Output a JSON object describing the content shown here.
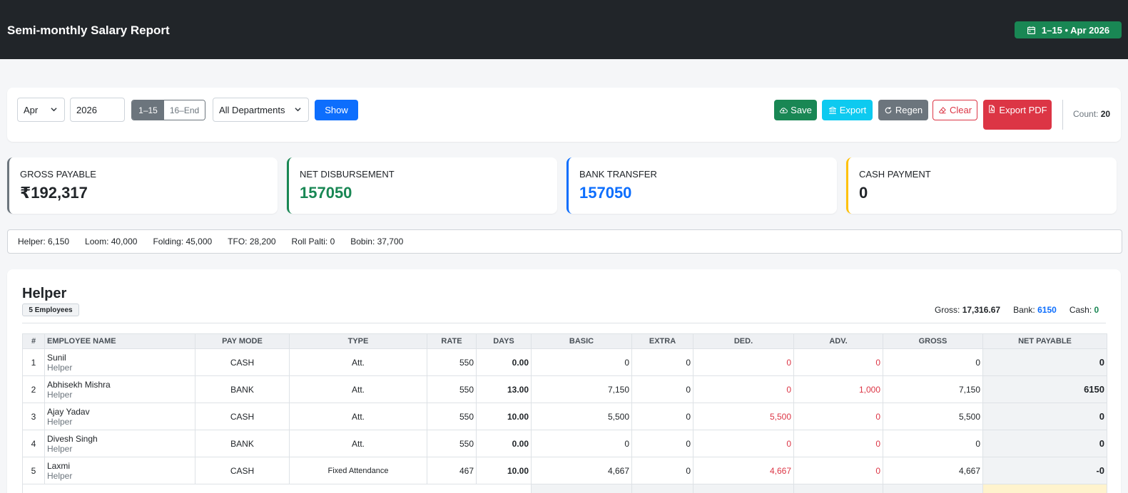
{
  "header": {
    "title": "Semi-monthly Salary Report",
    "period_badge": "1–15 • Apr 2026"
  },
  "filters": {
    "month": "Apr",
    "year": "2026",
    "half_first": "1–15",
    "half_second": "16–End",
    "department": "All Departments",
    "show_label": "Show"
  },
  "actions": {
    "save": "Save",
    "export": "Export",
    "regen": "Regen",
    "clear": "Clear",
    "export_pdf": "Export PDF",
    "count_label": "Count:",
    "count_value": "20"
  },
  "stats": [
    {
      "label": "GROSS PAYABLE",
      "value": "₹192,317",
      "color": "#212529",
      "border": "#6c757d"
    },
    {
      "label": "NET DISBURSEMENT",
      "value": "157050",
      "color": "#198754",
      "border": "#198754"
    },
    {
      "label": "BANK TRANSFER",
      "value": "157050",
      "color": "#0d6efd",
      "border": "#0d6efd"
    },
    {
      "label": "CASH PAYMENT",
      "value": "0",
      "color": "#212529",
      "border": "#ffc107"
    }
  ],
  "breakdown": [
    "Helper: 6,150",
    "Loom: 40,000",
    "Folding: 45,000",
    "TFO: 28,200",
    "Roll Palti: 0",
    "Bobin: 37,700"
  ],
  "section": {
    "title": "Helper",
    "badge": "5 Employees",
    "gross_label": "Gross:",
    "gross_value": "17,316.67",
    "bank_label": "Bank:",
    "bank_value": "6150",
    "cash_label": "Cash:",
    "cash_value": "0"
  },
  "table": {
    "headers": [
      "#",
      "EMPLOYEE NAME",
      "PAY MODE",
      "TYPE",
      "RATE",
      "DAYS",
      "BASIC",
      "EXTRA",
      "DED.",
      "ADV.",
      "GROSS",
      "NET PAYABLE"
    ],
    "rows": [
      {
        "num": "1",
        "name": "Sunil",
        "role": "Helper",
        "mode": "CASH",
        "type": "Att.",
        "rate": "550",
        "days": "0.00",
        "basic": "0",
        "extra": "0",
        "ded": "0",
        "adv": "0",
        "gross": "0",
        "net": "0"
      },
      {
        "num": "2",
        "name": "Abhisekh Mishra",
        "role": "Helper",
        "mode": "BANK",
        "type": "Att.",
        "rate": "550",
        "days": "13.00",
        "basic": "7,150",
        "extra": "0",
        "ded": "0",
        "adv": "1,000",
        "gross": "7,150",
        "net": "6150"
      },
      {
        "num": "3",
        "name": "Ajay Yadav",
        "role": "Helper",
        "mode": "CASH",
        "type": "Att.",
        "rate": "550",
        "days": "10.00",
        "basic": "5,500",
        "extra": "0",
        "ded": "5,500",
        "adv": "0",
        "gross": "5,500",
        "net": "0"
      },
      {
        "num": "4",
        "name": "Divesh Singh",
        "role": "Helper",
        "mode": "BANK",
        "type": "Att.",
        "rate": "550",
        "days": "0.00",
        "basic": "0",
        "extra": "0",
        "ded": "0",
        "adv": "0",
        "gross": "0",
        "net": "0"
      },
      {
        "num": "5",
        "name": "Laxmi",
        "role": "Helper",
        "mode": "CASH",
        "type": "Fixed Attendance",
        "rate": "467",
        "days": "10.00",
        "basic": "4,667",
        "extra": "0",
        "ded": "4,667",
        "adv": "0",
        "gross": "4,667",
        "net": "-0"
      }
    ]
  },
  "colors": {
    "header_bg": "#212529",
    "success": "#198754",
    "primary": "#0d6efd",
    "info": "#0dcaf0",
    "secondary": "#6c757d",
    "danger": "#dc3545",
    "warning": "#ffc107"
  },
  "icons": {
    "period": "calendar-icon",
    "save": "cloud-upload-icon",
    "export": "bank-icon",
    "regen": "refresh-icon",
    "clear": "eraser-icon",
    "export_pdf": "pdf-file-icon",
    "dropdown": "chevron-down-icon"
  }
}
